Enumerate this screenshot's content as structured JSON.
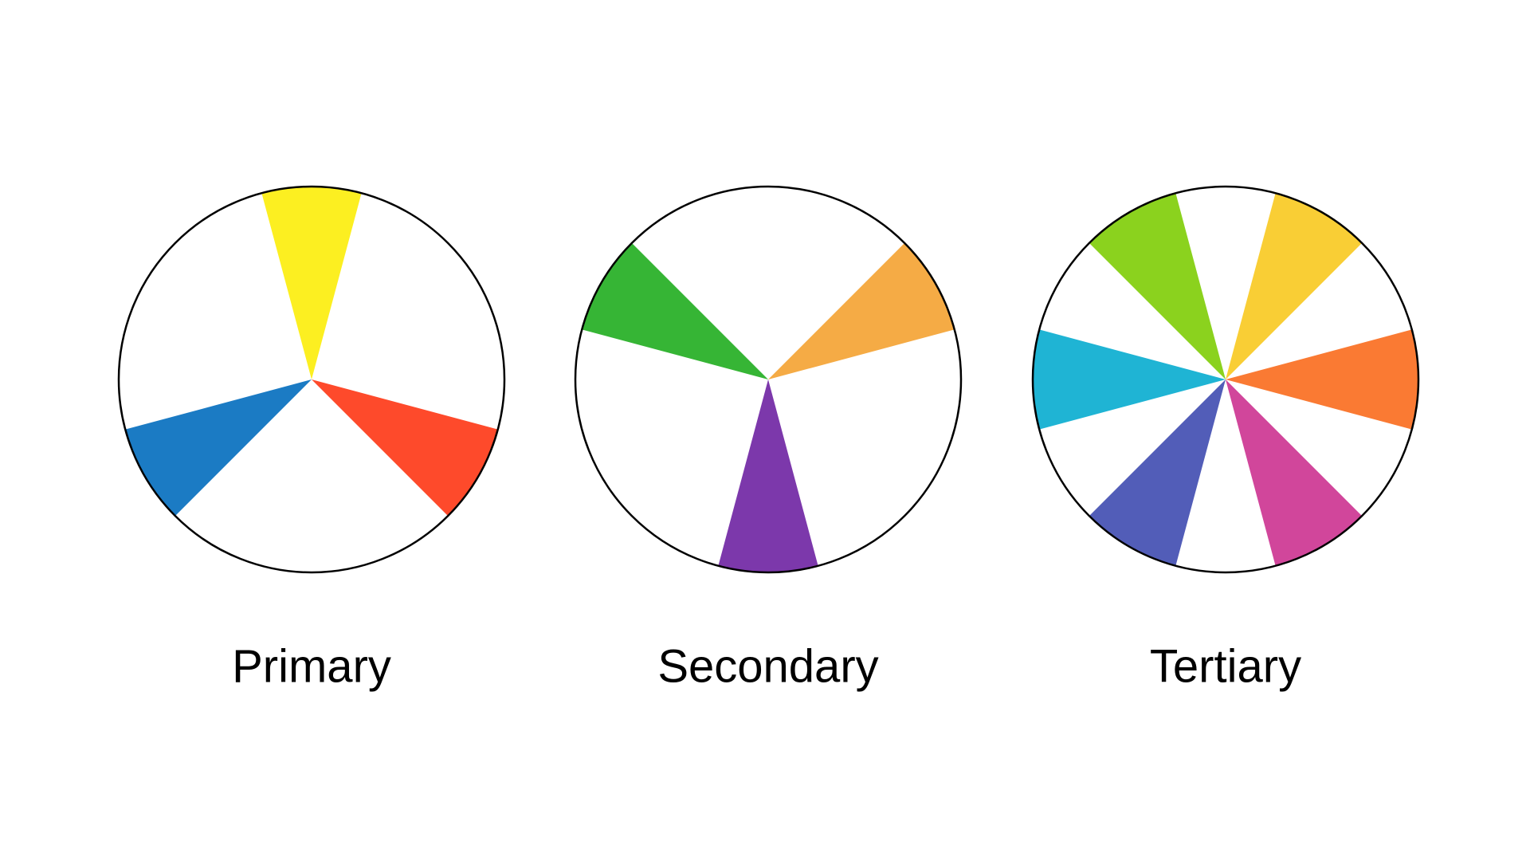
{
  "wheels": [
    {
      "label": "Primary"
    },
    {
      "label": "Secondary"
    },
    {
      "label": "Tertiary"
    }
  ]
}
